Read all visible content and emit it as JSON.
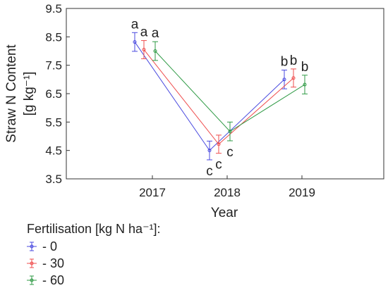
{
  "chart_data": {
    "type": "line",
    "ylabel": "Straw N Content",
    "ylabel_unit": "[g kg⁻¹]",
    "xlabel": "Year",
    "categories": [
      "2017",
      "2018",
      "2019"
    ],
    "ylim": [
      3.5,
      9.5
    ],
    "yticks": [
      "3.5",
      "4.5",
      "5.5",
      "6.5",
      "7.5",
      "8.5",
      "9.5"
    ],
    "legend": {
      "title": "Fertilisation [kg N ha⁻¹]:",
      "placement": "bottom-left"
    },
    "series": [
      {
        "name": "- 0",
        "color": "#4a4adf",
        "values": [
          8.32,
          4.5,
          7.0
        ],
        "errors": [
          0.33,
          0.33,
          0.33
        ],
        "letters": [
          "a",
          "c",
          "b"
        ]
      },
      {
        "name": "- 30",
        "color": "#ef4d4d",
        "values": [
          8.05,
          4.72,
          7.05
        ],
        "errors": [
          0.32,
          0.32,
          0.32
        ],
        "letters": [
          "a",
          "c",
          "b"
        ]
      },
      {
        "name": "- 60",
        "color": "#2f9a45",
        "values": [
          8.0,
          5.17,
          6.82
        ],
        "errors": [
          0.33,
          0.33,
          0.33
        ],
        "letters": [
          "a",
          "c",
          "b"
        ]
      }
    ]
  }
}
